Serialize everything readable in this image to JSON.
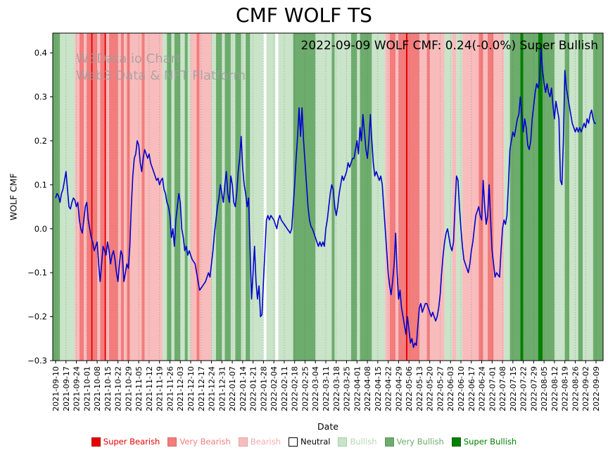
{
  "header": {
    "title": "CMF WOLF TS"
  },
  "watermark": {
    "line1": "W3Data.io Chart",
    "line2": "Web3 Data & NFT Platform"
  },
  "annotation": {
    "text": "2022-09-09 WOLF CMF: 0.24(-0.0%) Super Bullish"
  },
  "axes": {
    "x_label": "Date",
    "y_label": "WOLF CMF"
  },
  "legend": [
    {
      "label": "Super Bearish",
      "color": "#e50000",
      "text_color": "#e50000",
      "edge": "#b30000"
    },
    {
      "label": "Very Bearish",
      "color": "#f37c7c",
      "text_color": "#f37c7c",
      "edge": "#d96a6a"
    },
    {
      "label": "Bearish",
      "color": "#f8bcbc",
      "text_color": "#f4adad",
      "edge": "#dfa5a5"
    },
    {
      "label": "Neutral",
      "color": "#ffffff",
      "text_color": "#000000",
      "edge": "#000000"
    },
    {
      "label": "Bullish",
      "color": "#c9e4c9",
      "text_color": "#b4d7b4",
      "edge": "#aecdae"
    },
    {
      "label": "Very Bullish",
      "color": "#6dac6d",
      "text_color": "#6dac6d",
      "edge": "#5c975c"
    },
    {
      "label": "Super Bullish",
      "color": "#008000",
      "text_color": "#008000",
      "edge": "#006600"
    }
  ],
  "chart_data": {
    "type": "line",
    "title": "CMF WOLF TS",
    "xlabel": "Date",
    "ylabel": "WOLF CMF",
    "ylim": [
      -0.3,
      0.445
    ],
    "yticks": [
      0.4,
      0.3,
      0.2,
      0.1,
      0.0,
      -0.1,
      -0.2,
      -0.3
    ],
    "grid": "vertical-dotted",
    "legend_position": "bottom",
    "line_color": "#0000cd",
    "x_start_date": "2021-09-10",
    "x_end_date": "2022-09-09",
    "x_tick_interval_days": 7,
    "x_tick_labels": [
      "2021-09-10",
      "2021-09-17",
      "2021-09-24",
      "2021-10-01",
      "2021-10-08",
      "2021-10-15",
      "2021-10-22",
      "2021-10-29",
      "2021-11-05",
      "2021-11-12",
      "2021-11-19",
      "2021-11-26",
      "2021-12-03",
      "2021-12-10",
      "2021-12-17",
      "2021-12-24",
      "2021-12-31",
      "2022-01-07",
      "2022-01-14",
      "2022-01-21",
      "2022-01-28",
      "2022-02-04",
      "2022-02-11",
      "2022-02-18",
      "2022-02-25",
      "2022-03-04",
      "2022-03-11",
      "2022-03-18",
      "2022-03-25",
      "2022-04-01",
      "2022-04-08",
      "2022-04-15",
      "2022-04-22",
      "2022-04-29",
      "2022-05-06",
      "2022-05-13",
      "2022-05-20",
      "2022-05-27",
      "2022-06-03",
      "2022-06-10",
      "2022-06-17",
      "2022-06-24",
      "2022-07-01",
      "2022-07-08",
      "2022-07-15",
      "2022-07-22",
      "2022-07-29",
      "2022-08-05",
      "2022-08-12",
      "2022-08-19",
      "2022-08-26",
      "2022-09-02",
      "2022-09-09"
    ],
    "series": [
      {
        "name": "WOLF CMF",
        "x_unit": "days since 2021-09-10",
        "values": [
          0.07,
          0.08,
          0.075,
          0.06,
          0.08,
          0.09,
          0.11,
          0.13,
          0.09,
          0.05,
          0.045,
          0.06,
          0.07,
          0.065,
          0.05,
          0.06,
          0.02,
          0.0,
          -0.01,
          0.02,
          0.05,
          0.06,
          0.02,
          0.0,
          -0.02,
          -0.03,
          -0.05,
          -0.04,
          -0.03,
          -0.08,
          -0.12,
          -0.08,
          -0.04,
          -0.05,
          -0.06,
          -0.03,
          -0.05,
          -0.08,
          -0.06,
          -0.05,
          -0.07,
          -0.1,
          -0.12,
          -0.08,
          -0.05,
          -0.06,
          -0.12,
          -0.1,
          -0.08,
          -0.09,
          -0.04,
          0.05,
          0.12,
          0.16,
          0.17,
          0.2,
          0.19,
          0.15,
          0.13,
          0.16,
          0.18,
          0.17,
          0.16,
          0.17,
          0.15,
          0.14,
          0.13,
          0.12,
          0.11,
          0.115,
          0.1,
          0.11,
          0.115,
          0.09,
          0.08,
          0.06,
          0.05,
          0.03,
          -0.02,
          0.0,
          -0.04,
          0.02,
          0.05,
          0.08,
          0.06,
          0.0,
          -0.02,
          -0.05,
          -0.04,
          -0.06,
          -0.05,
          -0.06,
          -0.07,
          -0.075,
          -0.08,
          -0.1,
          -0.12,
          -0.14,
          -0.135,
          -0.13,
          -0.125,
          -0.12,
          -0.11,
          -0.1,
          -0.11,
          -0.08,
          -0.05,
          -0.01,
          0.02,
          0.05,
          0.07,
          0.1,
          0.08,
          0.06,
          0.1,
          0.13,
          0.08,
          0.06,
          0.12,
          0.1,
          0.06,
          0.05,
          0.08,
          0.13,
          0.16,
          0.21,
          0.14,
          0.1,
          0.08,
          0.05,
          0.07,
          -0.05,
          -0.16,
          -0.1,
          -0.04,
          -0.12,
          -0.16,
          -0.13,
          -0.2,
          -0.195,
          -0.12,
          -0.05,
          0.02,
          0.03,
          0.02,
          0.03,
          0.025,
          0.02,
          0.01,
          0.0,
          0.02,
          0.03,
          0.02,
          0.015,
          0.01,
          0.005,
          0.0,
          -0.005,
          -0.01,
          0.0,
          0.05,
          0.1,
          0.16,
          0.21,
          0.275,
          0.21,
          0.275,
          0.2,
          0.15,
          0.1,
          0.05,
          0.02,
          0.005,
          0.0,
          -0.01,
          -0.02,
          -0.03,
          -0.04,
          -0.03,
          -0.04,
          -0.03,
          -0.04,
          0.0,
          0.02,
          0.05,
          0.08,
          0.1,
          0.09,
          0.05,
          0.03,
          0.05,
          0.08,
          0.1,
          0.12,
          0.11,
          0.12,
          0.13,
          0.15,
          0.14,
          0.15,
          0.16,
          0.16,
          0.18,
          0.2,
          0.17,
          0.23,
          0.2,
          0.26,
          0.22,
          0.18,
          0.16,
          0.2,
          0.26,
          0.2,
          0.15,
          0.12,
          0.13,
          0.12,
          0.11,
          0.12,
          0.1,
          0.05,
          0.0,
          -0.05,
          -0.1,
          -0.13,
          -0.15,
          -0.12,
          -0.08,
          -0.01,
          -0.1,
          -0.16,
          -0.14,
          -0.18,
          -0.2,
          -0.22,
          -0.24,
          -0.2,
          -0.23,
          -0.26,
          -0.25,
          -0.27,
          -0.26,
          -0.265,
          -0.22,
          -0.18,
          -0.17,
          -0.19,
          -0.18,
          -0.17,
          -0.17,
          -0.18,
          -0.19,
          -0.2,
          -0.19,
          -0.2,
          -0.21,
          -0.2,
          -0.18,
          -0.15,
          -0.1,
          -0.06,
          -0.03,
          -0.01,
          0.0,
          -0.02,
          -0.04,
          -0.05,
          -0.03,
          0.05,
          0.12,
          0.11,
          0.05,
          0.0,
          -0.04,
          -0.07,
          -0.08,
          -0.09,
          -0.1,
          -0.08,
          -0.05,
          -0.03,
          0.0,
          0.03,
          0.04,
          0.05,
          0.03,
          0.02,
          0.11,
          0.05,
          0.01,
          0.03,
          0.1,
          0.02,
          -0.05,
          -0.08,
          -0.11,
          -0.1,
          -0.105,
          -0.11,
          -0.05,
          0.0,
          0.02,
          0.01,
          0.03,
          0.1,
          0.18,
          0.2,
          0.22,
          0.21,
          0.23,
          0.25,
          0.26,
          0.3,
          0.26,
          0.22,
          0.25,
          0.23,
          0.19,
          0.18,
          0.2,
          0.25,
          0.28,
          0.31,
          0.33,
          0.32,
          0.34,
          0.41,
          0.36,
          0.33,
          0.31,
          0.33,
          0.31,
          0.3,
          0.32,
          0.28,
          0.25,
          0.29,
          0.27,
          0.25,
          0.11,
          0.1,
          0.2,
          0.36,
          0.32,
          0.3,
          0.28,
          0.26,
          0.24,
          0.23,
          0.22,
          0.23,
          0.22,
          0.23,
          0.22,
          0.23,
          0.24,
          0.23,
          0.25,
          0.24,
          0.26,
          0.27,
          0.25,
          0.24,
          0.24
        ]
      }
    ],
    "band_colors": {
      "super_bearish": "#e50000",
      "very_bearish": "#f37c7c",
      "bearish": "#f8bcbc",
      "neutral": "#ffffff",
      "bullish": "#c9e4c9",
      "very_bullish": "#6dac6d",
      "super_bullish": "#008000"
    },
    "sentiment_bands": [
      [
        0,
        3,
        "very_bullish"
      ],
      [
        3,
        13,
        "bullish"
      ],
      [
        13,
        16,
        "bearish"
      ],
      [
        16,
        19,
        "very_bearish"
      ],
      [
        19,
        21,
        "bearish"
      ],
      [
        21,
        24,
        "very_bearish"
      ],
      [
        24,
        25,
        "super_bearish"
      ],
      [
        25,
        28,
        "very_bearish"
      ],
      [
        28,
        30,
        "bearish"
      ],
      [
        30,
        33,
        "very_bearish"
      ],
      [
        33,
        34,
        "super_bearish"
      ],
      [
        34,
        36,
        "bearish"
      ],
      [
        36,
        42,
        "very_bearish"
      ],
      [
        42,
        44,
        "bearish"
      ],
      [
        44,
        46,
        "very_bearish"
      ],
      [
        46,
        48,
        "bearish"
      ],
      [
        48,
        50,
        "very_bearish"
      ],
      [
        50,
        58,
        "bearish"
      ],
      [
        58,
        60,
        "very_bearish"
      ],
      [
        60,
        72,
        "bearish"
      ],
      [
        72,
        75,
        "bullish"
      ],
      [
        75,
        78,
        "very_bullish"
      ],
      [
        78,
        80,
        "bullish"
      ],
      [
        80,
        84,
        "very_bullish"
      ],
      [
        84,
        87,
        "bullish"
      ],
      [
        87,
        89,
        "very_bullish"
      ],
      [
        89,
        91,
        "bullish"
      ],
      [
        91,
        95,
        "bearish"
      ],
      [
        95,
        97,
        "very_bearish"
      ],
      [
        97,
        105,
        "bearish"
      ],
      [
        105,
        108,
        "bullish"
      ],
      [
        108,
        112,
        "very_bullish"
      ],
      [
        112,
        114,
        "bullish"
      ],
      [
        114,
        118,
        "very_bullish"
      ],
      [
        118,
        121,
        "bullish"
      ],
      [
        121,
        125,
        "very_bullish"
      ],
      [
        125,
        128,
        "bullish"
      ],
      [
        128,
        131,
        "very_bullish"
      ],
      [
        131,
        140,
        "bullish"
      ],
      [
        140,
        142,
        "neutral"
      ],
      [
        142,
        148,
        "bullish"
      ],
      [
        148,
        150,
        "neutral"
      ],
      [
        150,
        160,
        "bullish"
      ],
      [
        160,
        175,
        "very_bullish"
      ],
      [
        175,
        186,
        "bullish"
      ],
      [
        186,
        188,
        "very_bullish"
      ],
      [
        188,
        199,
        "bullish"
      ],
      [
        199,
        203,
        "very_bullish"
      ],
      [
        203,
        205,
        "bullish"
      ],
      [
        205,
        213,
        "very_bullish"
      ],
      [
        213,
        222,
        "bullish"
      ],
      [
        222,
        225,
        "bearish"
      ],
      [
        225,
        229,
        "very_bearish"
      ],
      [
        229,
        231,
        "bearish"
      ],
      [
        231,
        236,
        "very_bearish"
      ],
      [
        236,
        237,
        "super_bearish"
      ],
      [
        237,
        245,
        "very_bearish"
      ],
      [
        245,
        250,
        "bearish"
      ],
      [
        250,
        252,
        "very_bearish"
      ],
      [
        252,
        262,
        "bearish"
      ],
      [
        262,
        267,
        "bullish"
      ],
      [
        267,
        270,
        "bearish"
      ],
      [
        270,
        274,
        "bullish"
      ],
      [
        274,
        285,
        "bearish"
      ],
      [
        285,
        288,
        "very_bearish"
      ],
      [
        288,
        291,
        "bearish"
      ],
      [
        291,
        295,
        "very_bearish"
      ],
      [
        295,
        302,
        "bearish"
      ],
      [
        302,
        306,
        "bullish"
      ],
      [
        306,
        313,
        "very_bullish"
      ],
      [
        313,
        315,
        "super_bullish"
      ],
      [
        315,
        325,
        "very_bullish"
      ],
      [
        325,
        328,
        "super_bullish"
      ],
      [
        328,
        336,
        "very_bullish"
      ],
      [
        336,
        343,
        "bullish"
      ],
      [
        343,
        346,
        "very_bullish"
      ],
      [
        346,
        352,
        "bullish"
      ],
      [
        352,
        355,
        "very_bullish"
      ],
      [
        355,
        362,
        "bullish"
      ],
      [
        362,
        365,
        "very_bullish"
      ]
    ]
  }
}
